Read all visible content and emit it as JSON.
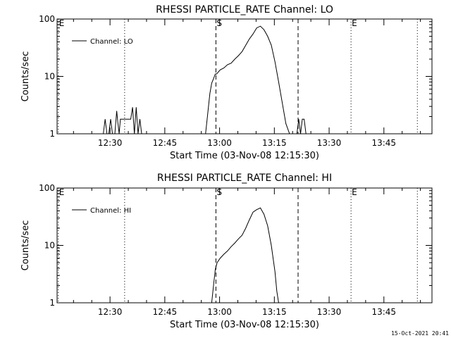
{
  "chart_data": [
    {
      "type": "line",
      "title": "RHESSI PARTICLE_RATE Channel: LO",
      "xlabel": "Start Time (03-Nov-08 12:15:30)",
      "ylabel": "Counts/sec",
      "yscale": "log",
      "ylim": [
        1,
        100
      ],
      "yticks": [
        "1",
        "10",
        "100"
      ],
      "xlim": [
        "12:15:30",
        "13:58:10"
      ],
      "xticks": [
        "12:30",
        "12:45",
        "13:00",
        "13:15",
        "13:30",
        "13:45"
      ],
      "legend": "top-left",
      "series": [
        {
          "name": "Channel: LO",
          "x": [
            "12:28:10",
            "12:28:40",
            "12:29:10",
            "12:29:40",
            "12:30:10",
            "12:30:40",
            "12:31:20",
            "12:31:50",
            "12:32:10",
            "12:32:30",
            "12:32:50",
            "12:33:10",
            "12:33:40",
            "12:34:10",
            "12:34:40",
            "12:35:10",
            "12:35:40",
            "12:36:10",
            "12:36:40",
            "12:37:10",
            "12:37:40",
            "12:38:10",
            "12:38:40",
            "12:39:10",
            "12:39:40",
            "12:40:10",
            "12:56:10",
            "12:56:50",
            "12:57:20",
            "12:57:50",
            "12:58:20",
            "12:58:50",
            "12:59:10",
            "13:00:10",
            "13:01:10",
            "13:02:10",
            "13:03:10",
            "13:04:10",
            "13:05:10",
            "13:06:10",
            "13:07:10",
            "13:08:10",
            "13:09:10",
            "13:10:10",
            "13:11:10",
            "13:12:10",
            "13:13:10",
            "13:14:10",
            "13:15:10",
            "13:16:10",
            "13:17:10",
            "13:18:10",
            "13:19:10",
            "13:19:50",
            "13:20:30",
            "13:21:10",
            "13:21:40",
            "13:22:10",
            "13:22:40",
            "13:23:10",
            "13:23:40",
            "13:24:10",
            "13:24:40"
          ],
          "y": [
            1,
            1.8,
            1,
            1,
            1.8,
            1,
            1,
            2.5,
            1.5,
            1,
            1.8,
            1.8,
            1.8,
            1.8,
            1.8,
            1.8,
            1.8,
            2.9,
            1,
            2.9,
            1,
            1.8,
            1,
            1,
            1,
            1,
            1,
            2.5,
            5,
            7.6,
            9.1,
            11,
            11,
            13,
            14,
            16,
            17,
            20,
            23,
            27,
            35,
            45,
            55,
            70,
            75,
            65,
            50,
            35,
            18,
            8,
            3.5,
            1.5,
            1,
            1,
            1,
            1,
            1.8,
            1,
            1.8,
            1.8,
            1,
            1,
            1
          ]
        }
      ],
      "markers": [
        {
          "label": "E",
          "time": "12:15:50",
          "style": "dotted"
        },
        {
          "label": "",
          "time": "12:34:00",
          "style": "dotted"
        },
        {
          "label": "S",
          "time": "12:59:00",
          "style": "dashed"
        },
        {
          "label": "",
          "time": "13:21:30",
          "style": "dashed"
        },
        {
          "label": "E",
          "time": "13:36:00",
          "style": "dotted"
        },
        {
          "label": "",
          "time": "13:54:10",
          "style": "dotted"
        }
      ]
    },
    {
      "type": "line",
      "title": "RHESSI PARTICLE_RATE Channel: HI",
      "xlabel": "Start Time (03-Nov-08 12:15:30)",
      "ylabel": "Counts/sec",
      "yscale": "log",
      "ylim": [
        1,
        100
      ],
      "yticks": [
        "1",
        "10",
        "100"
      ],
      "xlim": [
        "12:15:30",
        "13:58:10"
      ],
      "xticks": [
        "12:30",
        "12:45",
        "13:00",
        "13:15",
        "13:30",
        "13:45"
      ],
      "legend": "top-left",
      "series": [
        {
          "name": "Channel: HI",
          "x": [
            "12:57:50",
            "12:58:20",
            "12:58:50",
            "12:59:20",
            "13:00:10",
            "13:01:10",
            "13:02:10",
            "13:03:10",
            "13:04:10",
            "13:05:10",
            "13:06:10",
            "13:07:10",
            "13:08:10",
            "13:09:10",
            "13:10:10",
            "13:11:10",
            "13:12:10",
            "13:13:10",
            "13:14:10",
            "13:15:10",
            "13:15:40",
            "13:16:10"
          ],
          "y": [
            1,
            2,
            3.8,
            5,
            6,
            7,
            8,
            9.5,
            11,
            13,
            15,
            20,
            28,
            38,
            42,
            45,
            35,
            22,
            10,
            3.5,
            1.6,
            1
          ]
        }
      ],
      "markers": [
        {
          "label": "E",
          "time": "12:15:50",
          "style": "dotted"
        },
        {
          "label": "",
          "time": "12:34:00",
          "style": "dotted"
        },
        {
          "label": "S",
          "time": "12:59:00",
          "style": "dashed"
        },
        {
          "label": "",
          "time": "13:21:30",
          "style": "dashed"
        },
        {
          "label": "E",
          "time": "13:36:00",
          "style": "dotted"
        },
        {
          "label": "",
          "time": "13:54:10",
          "style": "dotted"
        }
      ]
    }
  ],
  "timestamp": "15-Oct-2021 20:41"
}
